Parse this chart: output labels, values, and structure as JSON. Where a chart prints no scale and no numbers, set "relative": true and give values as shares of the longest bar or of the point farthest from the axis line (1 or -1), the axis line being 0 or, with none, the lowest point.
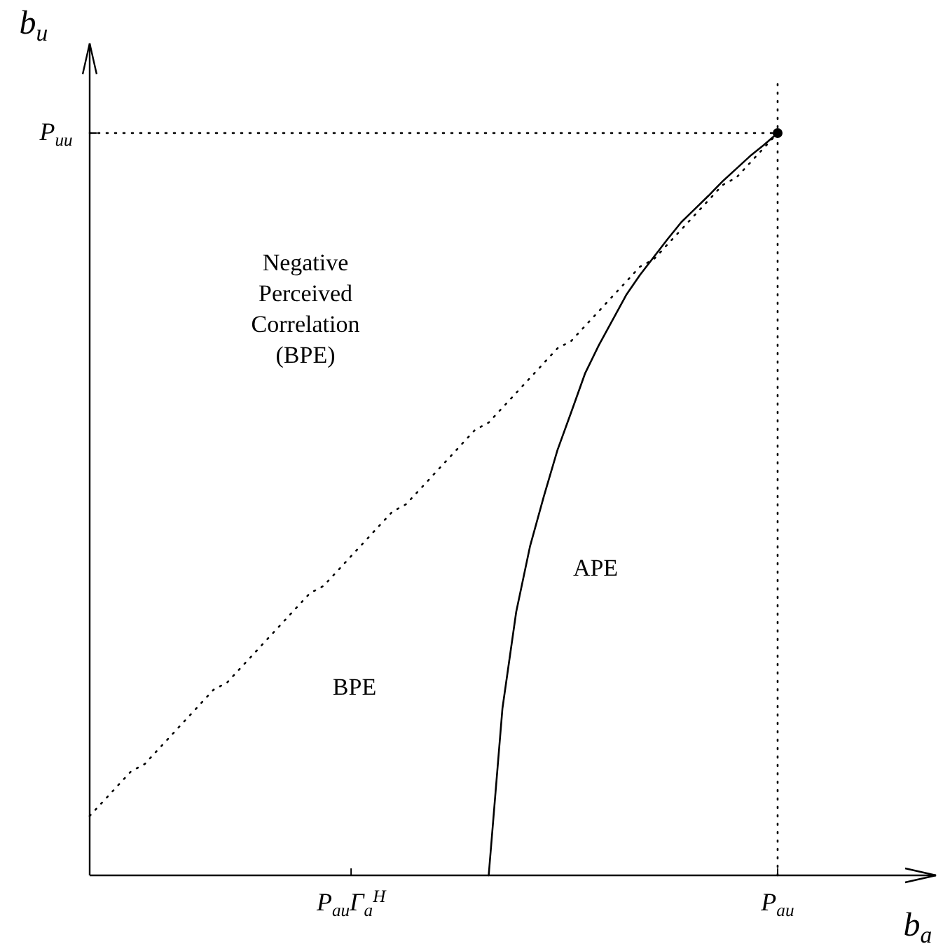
{
  "chart_data": {
    "type": "line",
    "xlabel": "b$_{a}$",
    "ylabel": "b$_{u}$",
    "relative": true,
    "categories": [
      null,
      null,
      null,
      null,
      null,
      null,
      null,
      null,
      null,
      null,
      null,
      null,
      null,
      null,
      null,
      null,
      null,
      null,
      null,
      "P$_{au}$Γ$_{a}$$^{H}$",
      null,
      null,
      null,
      null,
      null,
      null,
      null,
      null,
      null,
      null,
      null,
      null,
      null,
      null,
      null,
      null,
      null,
      null,
      null,
      null,
      null,
      null,
      null,
      null,
      null,
      null,
      null,
      null,
      null,
      null,
      "P$_{au}$",
      null,
      null,
      null,
      null,
      null,
      null,
      null,
      null,
      null,
      null,
      null
    ],
    "series": [
      {
        "color": "#000000",
        "line_style": "solid",
        "values": [
          null,
          null,
          null,
          null,
          null,
          null,
          null,
          null,
          null,
          null,
          null,
          null,
          null,
          null,
          null,
          null,
          null,
          null,
          null,
          null,
          null,
          null,
          null,
          null,
          null,
          null,
          null,
          null,
          null,
          0,
          0.225,
          0.355,
          0.443,
          0.51,
          0.573,
          0.624,
          0.676,
          0.714,
          0.748,
          0.782,
          0.809,
          0.833,
          0.857,
          0.88,
          0.898,
          0.916,
          0.935,
          0.952,
          0.969,
          0.984,
          1,
          null,
          null,
          null,
          null,
          null,
          null,
          null,
          null,
          null,
          null,
          null
        ]
      },
      {
        "color": "#000000",
        "line_style": "dotted",
        "values": [
          0.08,
          0.1,
          0.12,
          0.14,
          0.15,
          0.17,
          0.19,
          0.21,
          0.23,
          0.25,
          0.26,
          0.28,
          0.3,
          0.32,
          0.34,
          0.36,
          0.38,
          0.39,
          0.41,
          0.43,
          0.45,
          0.47,
          0.49,
          0.5,
          0.52,
          0.54,
          0.56,
          0.58,
          0.6,
          0.61,
          0.63,
          0.65,
          0.67,
          0.69,
          0.71,
          0.72,
          0.74,
          0.76,
          0.78,
          0.8,
          0.82,
          0.83,
          0.85,
          0.87,
          0.89,
          0.91,
          0.93,
          0.94,
          0.96,
          0.98,
          1,
          null,
          null,
          null,
          null,
          null,
          null,
          null,
          null,
          null,
          null,
          null
        ]
      },
      {
        "color": "#000000",
        "line_style": "dotted",
        "values": [
          1,
          1,
          1,
          1,
          1,
          1,
          1,
          1,
          1,
          1,
          1,
          1,
          1,
          1,
          1,
          1,
          1,
          1,
          1,
          1,
          1,
          1,
          1,
          1,
          1,
          1,
          1,
          1,
          1,
          1,
          1,
          1,
          1,
          1,
          1,
          1,
          1,
          1,
          1,
          1,
          1,
          1,
          1,
          1,
          1,
          1,
          1,
          1,
          1,
          1,
          1,
          null,
          null,
          null,
          null,
          null,
          null,
          null,
          null,
          null,
          null,
          null
        ]
      },
      {
        "type": "scatter",
        "color": "#000000",
        "marker": "circle",
        "x": [
          "P$_{au}$"
        ],
        "values": [
          1
        ]
      }
    ],
    "ref_lines": [
      {
        "axis": "x",
        "value": "P$_{au}$",
        "line_style": "dotted",
        "color": "#000000"
      }
    ],
    "annotations": [
      "Negative\nPerceived\nCorrelation\n(BPE)",
      "APE",
      "BPE",
      "P$_{uu}$"
    ]
  }
}
